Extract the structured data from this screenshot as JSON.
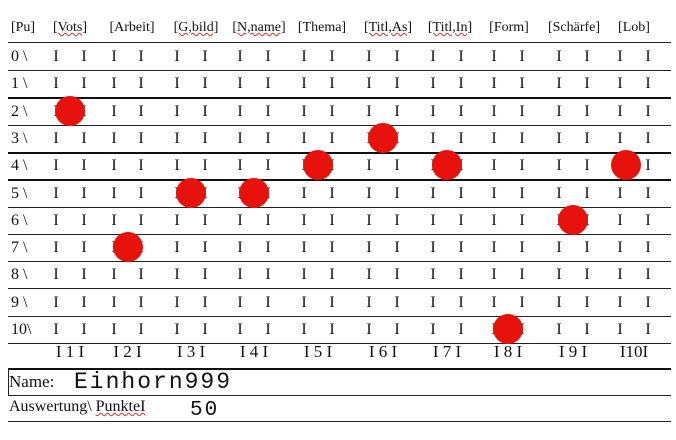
{
  "colors": {
    "dot": "#e8120c",
    "line": "#222222",
    "text": "#111111"
  },
  "columns": [
    "[Pu]",
    "[Vots]",
    "[Arbeit]",
    "[G,bild]",
    "[N,name]",
    "[Thema]",
    "[Titl,As]",
    "[Titl,In]",
    "[Form]",
    "[Schärfe]",
    "[Lob]"
  ],
  "rows": [
    {
      "label": "0 \\",
      "dot_col": null
    },
    {
      "label": "1 \\",
      "dot_col": null
    },
    {
      "label": "2 \\",
      "dot_col": 1
    },
    {
      "label": "3 \\",
      "dot_col": 6
    },
    {
      "label": "4 \\",
      "dot_col": 7
    },
    {
      "label": "5 \\",
      "dot_col": 3
    },
    {
      "label": "6 \\",
      "dot_col": 9
    },
    {
      "label": "7 \\",
      "dot_col": 2
    },
    {
      "label": "8 \\",
      "dot_col": null
    },
    {
      "label": "9 \\",
      "dot_col": null
    },
    {
      "label": "10\\",
      "dot_col": 8
    }
  ],
  "extra_dots": [
    {
      "row": 4,
      "col": 5
    },
    {
      "row": 4,
      "col": 10
    },
    {
      "row": 5,
      "col": 4
    }
  ],
  "bar_glyph": "I",
  "footer_numbers": [
    "I 1 I",
    "I 2 I",
    "I 3 I",
    "I 4 I",
    "I 5 I",
    "I 6 I",
    "I 7 I",
    "I 8 I",
    "I 9 I",
    "I10I"
  ],
  "name_label": "Name:",
  "name_value": "Einhorn999",
  "eval_label_part1": "Auswertung\\ ",
  "eval_label_part2": "PunkteI",
  "eval_value": "50"
}
